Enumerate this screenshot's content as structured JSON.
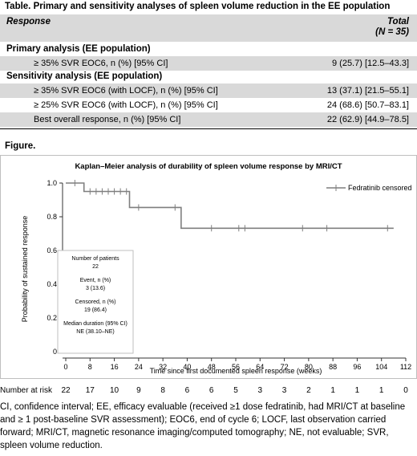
{
  "table": {
    "title": "Table. Primary and sensitivity analyses of spleen volume reduction in the EE population",
    "header_response": "Response",
    "header_total_line1": "Total",
    "header_total_line2": "(N = 35)",
    "sections": [
      {
        "heading": "Primary analysis (EE population)",
        "rows": [
          {
            "label": "≥ 35% SVR EOC6, n (%) [95% CI]",
            "value": "9 (25.7) [12.5–43.3]"
          }
        ]
      },
      {
        "heading": "Sensitivity analysis (EE population)",
        "rows": [
          {
            "label": "≥ 35% SVR EOC6 (with LOCF), n (%) [95% CI]",
            "value": "13 (37.1) [21.5–55.1]"
          },
          {
            "label": "≥ 25% SVR EOC6 (with LOCF), n (%) [95% CI]",
            "value": "24 (68.6) [50.7–83.1]"
          },
          {
            "label": "Best overall response, n (%) [95% CI]",
            "value": "22 (62.9) [44.9–78.5]"
          }
        ]
      }
    ]
  },
  "figure": {
    "label": "Figure.",
    "inset": {
      "patients_label": "Number of patients",
      "patients_value": "22",
      "event_label": "Event, n (%)",
      "event_value": "3 (13.6)",
      "censored_label": "Censored, n (%)",
      "censored_value": "19 (86.4)",
      "median_label": "Median duration (95% CI)",
      "median_value": "NE (38.10–NE)"
    },
    "risk_label": "Number at risk",
    "risk_values": [
      "22",
      "17",
      "10",
      "9",
      "8",
      "6",
      "6",
      "5",
      "3",
      "3",
      "2",
      "1",
      "1",
      "1",
      "0"
    ]
  },
  "chart_data": {
    "type": "line",
    "title": "Kaplan–Meier analysis of durability of spleen volume response by MRI/CT",
    "xlabel": "Time since first documented spleen response (weeks)",
    "ylabel": "Probability of sustained response",
    "xlim": [
      0,
      112
    ],
    "ylim": [
      0,
      1.0
    ],
    "x_ticks": [
      "0",
      "8",
      "16",
      "24",
      "32",
      "40",
      "48",
      "56",
      "64",
      "72",
      "80",
      "88",
      "96",
      "104",
      "112"
    ],
    "y_ticks": [
      "0",
      "0.2",
      "0.4",
      "0.6",
      "0.8",
      "1.0"
    ],
    "legend": "top-right",
    "series": [
      {
        "name": "Fedratinib censored",
        "step_x": [
          0,
          6,
          21,
          38,
          108
        ],
        "step_y": [
          1.0,
          0.95,
          0.855,
          0.732,
          0.732
        ],
        "censored_x": [
          3,
          8,
          10,
          12,
          14,
          16,
          18,
          20,
          24,
          36,
          48,
          57,
          59,
          78,
          86,
          106
        ],
        "censored_y": [
          1.0,
          0.95,
          0.95,
          0.95,
          0.95,
          0.95,
          0.95,
          0.95,
          0.855,
          0.855,
          0.732,
          0.732,
          0.732,
          0.732,
          0.732,
          0.732
        ]
      }
    ],
    "color": "#7f7f7f"
  },
  "footnote": "CI, confidence interval; EE, efficacy evaluable (received ≥1 dose fedratinib, had MRI/CT at baseline and ≥ 1 post-baseline SVR assessment); EOC6, end of cycle 6; LOCF, last observation carried forward; MRI/CT, magnetic resonance imaging/computed tomography; NE, not evaluable; SVR, spleen volume reduction."
}
